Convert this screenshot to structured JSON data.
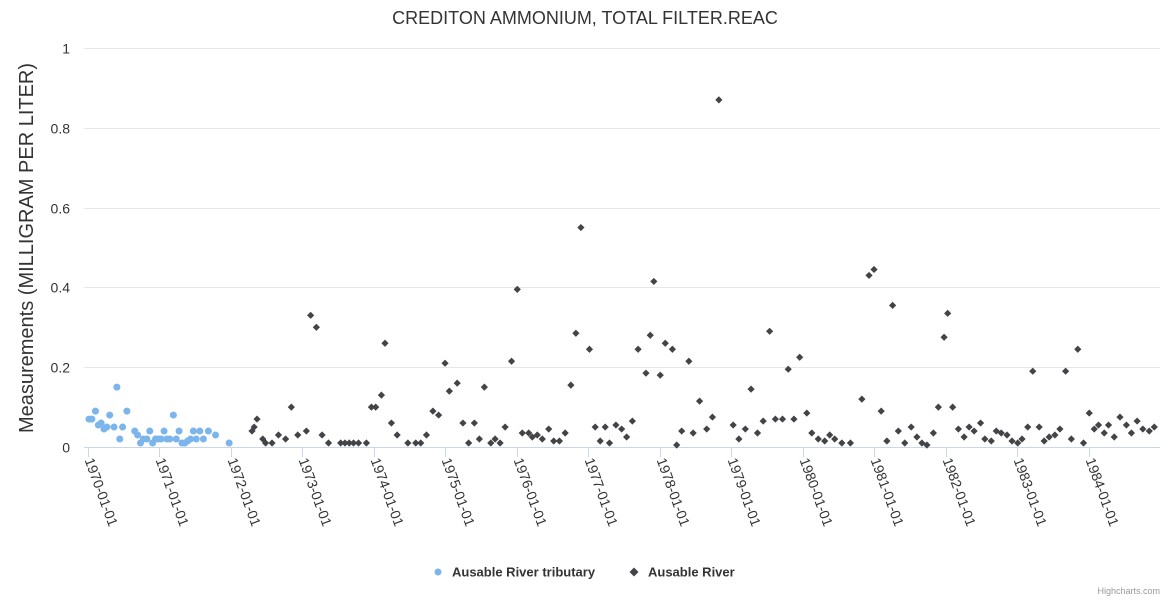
{
  "credits": "Highcharts.com",
  "colors": {
    "series1": "#7cb5ec",
    "series2": "#434348",
    "grid": "#e6e6e6",
    "axis": "#ccd6eb"
  },
  "chart_data": {
    "type": "scatter",
    "title": "CREDITON AMMONIUM, TOTAL FILTER.REAC",
    "xlabel": "",
    "ylabel": "Measurements (MILLIGRAM PER LITER)",
    "xlim": [
      1969.95,
      1985.0
    ],
    "ylim": [
      0,
      1
    ],
    "yticks": [
      {
        "value": 0,
        "label": "0"
      },
      {
        "value": 0.2,
        "label": "0.2"
      },
      {
        "value": 0.4,
        "label": "0.4"
      },
      {
        "value": 0.6,
        "label": "0.6"
      },
      {
        "value": 0.8,
        "label": "0.8"
      },
      {
        "value": 1,
        "label": "1"
      }
    ],
    "xticks": [
      {
        "value": 1970,
        "label": "1970-01-01"
      },
      {
        "value": 1971,
        "label": "1971-01-01"
      },
      {
        "value": 1972,
        "label": "1972-01-01"
      },
      {
        "value": 1973,
        "label": "1973-01-01"
      },
      {
        "value": 1974,
        "label": "1974-01-01"
      },
      {
        "value": 1975,
        "label": "1975-01-01"
      },
      {
        "value": 1976,
        "label": "1976-01-01"
      },
      {
        "value": 1977,
        "label": "1977-01-01"
      },
      {
        "value": 1978,
        "label": "1978-01-01"
      },
      {
        "value": 1979,
        "label": "1979-01-01"
      },
      {
        "value": 1980,
        "label": "1980-01-01"
      },
      {
        "value": 1981,
        "label": "1981-01-01"
      },
      {
        "value": 1982,
        "label": "1982-01-01"
      },
      {
        "value": 1983,
        "label": "1983-01-01"
      },
      {
        "value": 1984,
        "label": "1984-01-01"
      }
    ],
    "legend_position": "bottom-center",
    "series": [
      {
        "name": "Ausable River tributary",
        "marker": "circle",
        "color": "#7cb5ec",
        "points": [
          [
            1970.02,
            0.07
          ],
          [
            1970.06,
            0.07
          ],
          [
            1970.11,
            0.09
          ],
          [
            1970.15,
            0.055
          ],
          [
            1970.19,
            0.06
          ],
          [
            1970.23,
            0.045
          ],
          [
            1970.27,
            0.05
          ],
          [
            1970.31,
            0.08
          ],
          [
            1970.37,
            0.05
          ],
          [
            1970.41,
            0.15
          ],
          [
            1970.45,
            0.02
          ],
          [
            1970.49,
            0.05
          ],
          [
            1970.55,
            0.09
          ],
          [
            1970.66,
            0.04
          ],
          [
            1970.7,
            0.03
          ],
          [
            1970.74,
            0.01
          ],
          [
            1970.78,
            0.02
          ],
          [
            1970.83,
            0.02
          ],
          [
            1970.87,
            0.04
          ],
          [
            1970.91,
            0.01
          ],
          [
            1970.95,
            0.02
          ],
          [
            1970.99,
            0.02
          ],
          [
            1971.03,
            0.02
          ],
          [
            1971.07,
            0.04
          ],
          [
            1971.11,
            0.02
          ],
          [
            1971.15,
            0.02
          ],
          [
            1971.2,
            0.08
          ],
          [
            1971.24,
            0.02
          ],
          [
            1971.28,
            0.04
          ],
          [
            1971.32,
            0.01
          ],
          [
            1971.36,
            0.01
          ],
          [
            1971.4,
            0.015
          ],
          [
            1971.44,
            0.02
          ],
          [
            1971.48,
            0.04
          ],
          [
            1971.52,
            0.02
          ],
          [
            1971.57,
            0.04
          ],
          [
            1971.62,
            0.02
          ],
          [
            1971.69,
            0.04
          ],
          [
            1971.79,
            0.03
          ],
          [
            1971.98,
            0.01
          ]
        ]
      },
      {
        "name": "Ausable River",
        "marker": "diamond",
        "color": "#434348",
        "points": [
          [
            1972.3,
            0.04
          ],
          [
            1972.33,
            0.05
          ],
          [
            1972.37,
            0.07
          ],
          [
            1972.45,
            0.02
          ],
          [
            1972.49,
            0.01
          ],
          [
            1972.58,
            0.01
          ],
          [
            1972.67,
            0.03
          ],
          [
            1972.77,
            0.02
          ],
          [
            1972.85,
            0.1
          ],
          [
            1972.94,
            0.03
          ],
          [
            1973.06,
            0.04
          ],
          [
            1973.12,
            0.33
          ],
          [
            1973.2,
            0.3
          ],
          [
            1973.28,
            0.03
          ],
          [
            1973.37,
            0.01
          ],
          [
            1973.54,
            0.01
          ],
          [
            1973.6,
            0.01
          ],
          [
            1973.66,
            0.01
          ],
          [
            1973.72,
            0.01
          ],
          [
            1973.79,
            0.01
          ],
          [
            1973.9,
            0.01
          ],
          [
            1973.97,
            0.1
          ],
          [
            1974.03,
            0.1
          ],
          [
            1974.11,
            0.13
          ],
          [
            1974.16,
            0.26
          ],
          [
            1974.25,
            0.06
          ],
          [
            1974.33,
            0.03
          ],
          [
            1974.48,
            0.01
          ],
          [
            1974.59,
            0.01
          ],
          [
            1974.66,
            0.01
          ],
          [
            1974.74,
            0.03
          ],
          [
            1974.83,
            0.09
          ],
          [
            1974.91,
            0.08
          ],
          [
            1975.0,
            0.21
          ],
          [
            1975.06,
            0.14
          ],
          [
            1975.17,
            0.16
          ],
          [
            1975.25,
            0.06
          ],
          [
            1975.33,
            0.01
          ],
          [
            1975.41,
            0.06
          ],
          [
            1975.48,
            0.02
          ],
          [
            1975.55,
            0.15
          ],
          [
            1975.64,
            0.01
          ],
          [
            1975.7,
            0.02
          ],
          [
            1975.77,
            0.01
          ],
          [
            1975.84,
            0.05
          ],
          [
            1975.93,
            0.215
          ],
          [
            1976.01,
            0.395
          ],
          [
            1976.08,
            0.035
          ],
          [
            1976.17,
            0.035
          ],
          [
            1976.22,
            0.025
          ],
          [
            1976.29,
            0.03
          ],
          [
            1976.36,
            0.02
          ],
          [
            1976.45,
            0.045
          ],
          [
            1976.52,
            0.015
          ],
          [
            1976.6,
            0.015
          ],
          [
            1976.68,
            0.035
          ],
          [
            1976.76,
            0.155
          ],
          [
            1976.83,
            0.285
          ],
          [
            1976.9,
            0.55
          ],
          [
            1977.02,
            0.245
          ],
          [
            1977.1,
            0.05
          ],
          [
            1977.17,
            0.015
          ],
          [
            1977.24,
            0.05
          ],
          [
            1977.3,
            0.01
          ],
          [
            1977.39,
            0.055
          ],
          [
            1977.47,
            0.045
          ],
          [
            1977.54,
            0.025
          ],
          [
            1977.62,
            0.065
          ],
          [
            1977.7,
            0.245
          ],
          [
            1977.81,
            0.185
          ],
          [
            1977.87,
            0.28
          ],
          [
            1977.92,
            0.415
          ],
          [
            1978.01,
            0.18
          ],
          [
            1978.08,
            0.26
          ],
          [
            1978.18,
            0.245
          ],
          [
            1978.24,
            0.005
          ],
          [
            1978.31,
            0.04
          ],
          [
            1978.41,
            0.215
          ],
          [
            1978.47,
            0.035
          ],
          [
            1978.56,
            0.115
          ],
          [
            1978.66,
            0.045
          ],
          [
            1978.74,
            0.075
          ],
          [
            1978.83,
            0.87
          ],
          [
            1979.03,
            0.055
          ],
          [
            1979.11,
            0.02
          ],
          [
            1979.2,
            0.045
          ],
          [
            1979.28,
            0.145
          ],
          [
            1979.37,
            0.035
          ],
          [
            1979.45,
            0.065
          ],
          [
            1979.54,
            0.29
          ],
          [
            1979.62,
            0.07
          ],
          [
            1979.72,
            0.07
          ],
          [
            1979.8,
            0.195
          ],
          [
            1979.88,
            0.07
          ],
          [
            1979.96,
            0.225
          ],
          [
            1980.06,
            0.085
          ],
          [
            1980.13,
            0.035
          ],
          [
            1980.22,
            0.02
          ],
          [
            1980.31,
            0.015
          ],
          [
            1980.38,
            0.03
          ],
          [
            1980.45,
            0.02
          ],
          [
            1980.55,
            0.01
          ],
          [
            1980.67,
            0.01
          ],
          [
            1980.83,
            0.12
          ],
          [
            1980.93,
            0.43
          ],
          [
            1981.0,
            0.445
          ],
          [
            1981.1,
            0.09
          ],
          [
            1981.18,
            0.015
          ],
          [
            1981.26,
            0.355
          ],
          [
            1981.34,
            0.04
          ],
          [
            1981.43,
            0.01
          ],
          [
            1981.52,
            0.05
          ],
          [
            1981.6,
            0.025
          ],
          [
            1981.67,
            0.01
          ],
          [
            1981.74,
            0.005
          ],
          [
            1981.83,
            0.035
          ],
          [
            1981.9,
            0.1
          ],
          [
            1981.98,
            0.275
          ],
          [
            1982.03,
            0.335
          ],
          [
            1982.1,
            0.1
          ],
          [
            1982.18,
            0.045
          ],
          [
            1982.26,
            0.025
          ],
          [
            1982.33,
            0.05
          ],
          [
            1982.4,
            0.04
          ],
          [
            1982.49,
            0.06
          ],
          [
            1982.55,
            0.02
          ],
          [
            1982.64,
            0.015
          ],
          [
            1982.71,
            0.04
          ],
          [
            1982.78,
            0.035
          ],
          [
            1982.86,
            0.03
          ],
          [
            1982.93,
            0.015
          ],
          [
            1983.01,
            0.01
          ],
          [
            1983.07,
            0.02
          ],
          [
            1983.15,
            0.05
          ],
          [
            1983.22,
            0.19
          ],
          [
            1983.31,
            0.05
          ],
          [
            1983.38,
            0.015
          ],
          [
            1983.45,
            0.025
          ],
          [
            1983.53,
            0.03
          ],
          [
            1983.6,
            0.045
          ],
          [
            1983.68,
            0.19
          ],
          [
            1983.76,
            0.02
          ],
          [
            1983.85,
            0.245
          ],
          [
            1983.93,
            0.01
          ],
          [
            1984.01,
            0.085
          ],
          [
            1984.08,
            0.045
          ],
          [
            1984.14,
            0.055
          ],
          [
            1984.22,
            0.035
          ],
          [
            1984.28,
            0.055
          ],
          [
            1984.36,
            0.025
          ],
          [
            1984.44,
            0.075
          ],
          [
            1984.53,
            0.055
          ],
          [
            1984.6,
            0.035
          ],
          [
            1984.68,
            0.065
          ],
          [
            1984.76,
            0.045
          ],
          [
            1984.85,
            0.04
          ],
          [
            1984.92,
            0.05
          ]
        ]
      }
    ]
  }
}
